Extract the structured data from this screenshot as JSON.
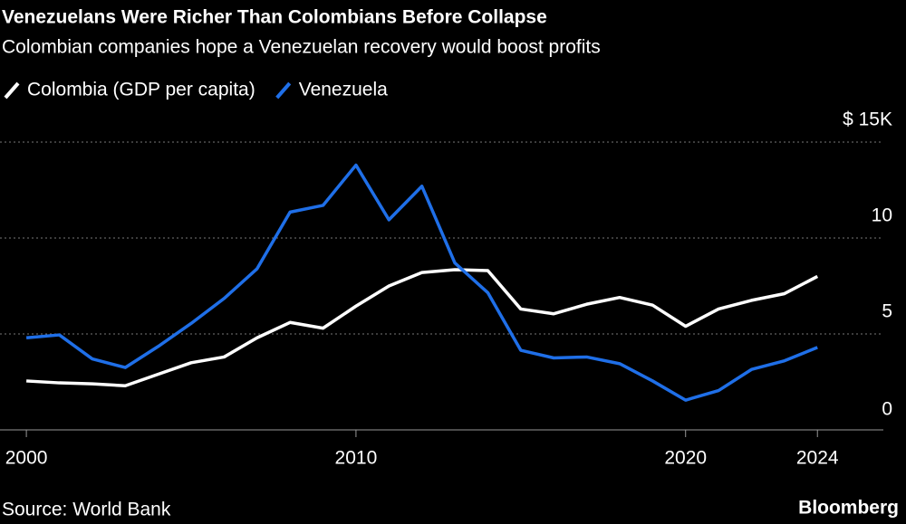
{
  "chart_data": {
    "type": "line",
    "title": "Venezuelans Were Richer Than Colombians Before Collapse",
    "subtitle": "Colombian companies hope a Venezuelan recovery would boost profits",
    "source": "Source: World Bank",
    "brand": "Bloomberg",
    "x": [
      2000,
      2001,
      2002,
      2003,
      2004,
      2005,
      2006,
      2007,
      2008,
      2009,
      2010,
      2011,
      2012,
      2013,
      2014,
      2015,
      2016,
      2017,
      2018,
      2019,
      2020,
      2021,
      2022,
      2023,
      2024
    ],
    "series": [
      {
        "name": "Colombia (GDP per capita)",
        "color": "#ffffff",
        "values": [
          2.55,
          2.45,
          2.4,
          2.3,
          2.9,
          3.5,
          3.8,
          4.8,
          5.6,
          5.3,
          6.45,
          7.5,
          8.2,
          8.35,
          8.3,
          6.3,
          6.05,
          6.55,
          6.9,
          6.5,
          5.4,
          6.3,
          6.75,
          7.1,
          8.0
        ]
      },
      {
        "name": "Venezuela",
        "color": "#1f6fe8",
        "values": [
          4.8,
          4.95,
          3.7,
          3.25,
          4.35,
          5.55,
          6.85,
          8.4,
          11.35,
          11.7,
          13.8,
          10.95,
          12.7,
          8.7,
          7.15,
          4.15,
          3.75,
          3.8,
          3.45,
          2.55,
          1.55,
          2.05,
          3.15,
          3.6,
          4.3
        ]
      }
    ],
    "xlim": [
      1999.2,
      2026
    ],
    "xticks": [
      2000,
      2010,
      2020,
      2024
    ],
    "ylim": [
      0,
      15
    ],
    "yticks": [
      0,
      5,
      10,
      {
        "value": 15,
        "label": "$ 15K"
      }
    ],
    "grid": true
  }
}
